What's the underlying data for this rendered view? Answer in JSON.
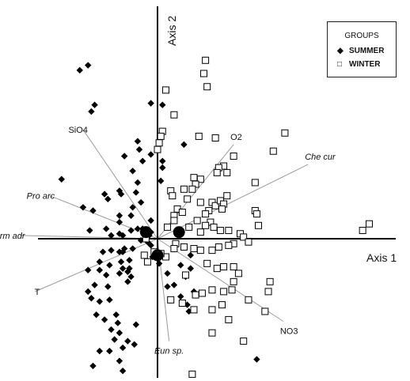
{
  "chart_data": {
    "type": "scatter",
    "title": "",
    "xlabel": "Axis 1",
    "ylabel": "Axis 2",
    "xlim": [
      -1.0,
      1.5
    ],
    "ylim": [
      -1.0,
      1.2
    ],
    "grid": false,
    "legend": {
      "title": "GROUPS",
      "position": "top-right",
      "entries": [
        {
          "name": "SUMMER",
          "marker": "filled-diamond"
        },
        {
          "name": "WINTER",
          "marker": "open-square"
        }
      ]
    },
    "vectors": [
      {
        "label": "SiO4",
        "x": -0.45,
        "y": 0.66,
        "italic": false
      },
      {
        "label": "O2",
        "x": 0.46,
        "y": 0.57,
        "italic": false
      },
      {
        "label": "Che cur",
        "x": 0.91,
        "y": 0.45,
        "italic": true
      },
      {
        "label": "Pro arc",
        "x": -0.65,
        "y": 0.26,
        "italic": true
      },
      {
        "label": "Herm adr",
        "x": -0.83,
        "y": 0.02,
        "italic": true
      },
      {
        "label": "T",
        "x": -0.74,
        "y": -0.32,
        "italic": false
      },
      {
        "label": "NO3",
        "x": 0.76,
        "y": -0.5,
        "italic": false
      },
      {
        "label": "Eun sp.",
        "x": 0.07,
        "y": -0.62,
        "italic": true
      }
    ],
    "centroids": [
      {
        "name": "SUMMER",
        "x": -0.07,
        "y": 0.04
      },
      {
        "name": "WINTER",
        "x": 0.13,
        "y": 0.04
      },
      {
        "name": "",
        "x": 0.0,
        "y": -0.1
      }
    ],
    "series": [
      {
        "name": "SUMMER",
        "points": [
          [
            -0.42,
            1.05
          ],
          [
            -0.47,
            1.02
          ],
          [
            -0.4,
            0.77
          ],
          [
            -0.38,
            0.81
          ],
          [
            -0.04,
            0.82
          ],
          [
            0.03,
            0.81
          ],
          [
            0.16,
            0.57
          ],
          [
            -0.12,
            0.59
          ],
          [
            -0.11,
            0.54
          ],
          [
            -0.09,
            0.47
          ],
          [
            -0.2,
            0.5
          ],
          [
            -0.15,
            0.41
          ],
          [
            -0.04,
            0.51
          ],
          [
            0.03,
            0.47
          ],
          [
            0.03,
            0.43
          ],
          [
            0.02,
            0.35
          ],
          [
            -0.12,
            0.34
          ],
          [
            -0.13,
            0.28
          ],
          [
            -0.23,
            0.29
          ],
          [
            -0.22,
            0.27
          ],
          [
            -0.32,
            0.27
          ],
          [
            -0.3,
            0.24
          ],
          [
            -0.1,
            0.22
          ],
          [
            -0.15,
            0.19
          ],
          [
            -0.16,
            0.14
          ],
          [
            -0.23,
            0.14
          ],
          [
            -0.23,
            0.1
          ],
          [
            -0.39,
            0.17
          ],
          [
            -0.45,
            0.19
          ],
          [
            -0.58,
            0.36
          ],
          [
            -0.41,
            0.05
          ],
          [
            -0.04,
            0.11
          ],
          [
            -0.04,
            0.04
          ],
          [
            -0.09,
            0.06
          ],
          [
            -0.12,
            0.06
          ],
          [
            -0.16,
            0.05
          ],
          [
            -0.21,
            0.02
          ],
          [
            -0.23,
            0.03
          ],
          [
            -0.28,
            0.02
          ],
          [
            -0.31,
            0.06
          ],
          [
            -0.05,
            0.02
          ],
          [
            -0.06,
            -0.02
          ],
          [
            -0.1,
            -0.01
          ],
          [
            -0.15,
            -0.06
          ],
          [
            -0.2,
            -0.06
          ],
          [
            -0.21,
            -0.08
          ],
          [
            -0.23,
            -0.08
          ],
          [
            -0.28,
            -0.07
          ],
          [
            -0.33,
            -0.08
          ],
          [
            -0.35,
            -0.14
          ],
          [
            -0.22,
            -0.14
          ],
          [
            -0.17,
            -0.18
          ],
          [
            -0.18,
            -0.2
          ],
          [
            -0.21,
            -0.18
          ],
          [
            -0.23,
            -0.21
          ],
          [
            -0.16,
            -0.23
          ],
          [
            -0.18,
            -0.26
          ],
          [
            -0.29,
            -0.16
          ],
          [
            -0.31,
            -0.22
          ],
          [
            -0.35,
            -0.19
          ],
          [
            -0.42,
            -0.19
          ],
          [
            -0.38,
            -0.28
          ],
          [
            -0.3,
            -0.29
          ],
          [
            -0.29,
            -0.37
          ],
          [
            -0.35,
            -0.38
          ],
          [
            -0.4,
            -0.36
          ],
          [
            -0.42,
            -0.32
          ],
          [
            -0.37,
            -0.46
          ],
          [
            -0.25,
            -0.46
          ],
          [
            -0.32,
            -0.49
          ],
          [
            -0.24,
            -0.51
          ],
          [
            -0.13,
            -0.52
          ],
          [
            -0.28,
            -0.55
          ],
          [
            -0.23,
            -0.57
          ],
          [
            -0.26,
            -0.61
          ],
          [
            -0.18,
            -0.62
          ],
          [
            -0.14,
            -0.64
          ],
          [
            -0.21,
            -0.66
          ],
          [
            -0.29,
            -0.68
          ],
          [
            -0.35,
            -0.68
          ],
          [
            -0.23,
            -0.74
          ],
          [
            -0.21,
            -0.8
          ],
          [
            -0.39,
            -0.77
          ],
          [
            -0.42,
            -0.92
          ],
          [
            -0.04,
            -0.04
          ],
          [
            -0.03,
            -0.11
          ],
          [
            0.01,
            -0.15
          ],
          [
            0.06,
            -0.21
          ],
          [
            0.06,
            -0.29
          ],
          [
            0.1,
            -0.28
          ],
          [
            0.14,
            -0.35
          ],
          [
            0.18,
            -0.4
          ],
          [
            0.19,
            -0.44
          ],
          [
            0.22,
            -0.32
          ],
          [
            0.2,
            -0.18
          ],
          [
            0.14,
            -0.16
          ],
          [
            0.17,
            -0.23
          ],
          [
            0.2,
            -0.1
          ],
          [
            0.6,
            -0.73
          ],
          [
            -0.17,
            -0.13
          ]
        ]
      },
      {
        "name": "WINTER",
        "points": [
          [
            0.29,
            1.08
          ],
          [
            0.28,
            1.0
          ],
          [
            0.3,
            0.92
          ],
          [
            0.05,
            0.9
          ],
          [
            0.1,
            0.75
          ],
          [
            0.25,
            0.62
          ],
          [
            0.35,
            0.61
          ],
          [
            0.03,
            0.65
          ],
          [
            0.01,
            0.58
          ],
          [
            0.0,
            0.54
          ],
          [
            0.46,
            0.5
          ],
          [
            0.77,
            0.64
          ],
          [
            0.7,
            0.53
          ],
          [
            0.4,
            0.44
          ],
          [
            0.37,
            0.43
          ],
          [
            0.36,
            0.4
          ],
          [
            0.42,
            0.4
          ],
          [
            0.22,
            0.37
          ],
          [
            0.26,
            0.36
          ],
          [
            0.23,
            0.33
          ],
          [
            0.59,
            0.34
          ],
          [
            0.21,
            0.3
          ],
          [
            0.16,
            0.3
          ],
          [
            0.18,
            0.24
          ],
          [
            0.26,
            0.22
          ],
          [
            0.33,
            0.22
          ],
          [
            0.35,
            0.2
          ],
          [
            0.38,
            0.23
          ],
          [
            0.4,
            0.21
          ],
          [
            0.42,
            0.26
          ],
          [
            0.31,
            0.17
          ],
          [
            0.29,
            0.15
          ],
          [
            0.32,
            0.1
          ],
          [
            0.39,
            0.18
          ],
          [
            0.08,
            0.29
          ],
          [
            0.09,
            0.26
          ],
          [
            0.12,
            0.18
          ],
          [
            0.15,
            0.16
          ],
          [
            0.1,
            0.14
          ],
          [
            0.1,
            0.11
          ],
          [
            0.06,
            0.07
          ],
          [
            0.19,
            0.07
          ],
          [
            0.24,
            0.11
          ],
          [
            0.29,
            0.08
          ],
          [
            0.26,
            0.04
          ],
          [
            0.34,
            0.07
          ],
          [
            0.38,
            0.05
          ],
          [
            0.43,
            0.05
          ],
          [
            0.59,
            0.17
          ],
          [
            0.6,
            0.15
          ],
          [
            0.61,
            0.08
          ],
          [
            0.5,
            0.03
          ],
          [
            0.52,
            0.01
          ],
          [
            0.55,
            -0.02
          ],
          [
            0.46,
            -0.03
          ],
          [
            0.43,
            -0.04
          ],
          [
            0.37,
            -0.05
          ],
          [
            0.33,
            -0.07
          ],
          [
            0.26,
            -0.07
          ],
          [
            0.22,
            -0.06
          ],
          [
            0.16,
            -0.05
          ],
          [
            0.11,
            -0.03
          ],
          [
            0.1,
            -0.06
          ],
          [
            0.05,
            -0.11
          ],
          [
            0.02,
            -0.09
          ],
          [
            -0.02,
            -0.08
          ],
          [
            0.3,
            -0.15
          ],
          [
            0.36,
            -0.18
          ],
          [
            0.4,
            -0.17
          ],
          [
            0.46,
            -0.17
          ],
          [
            0.49,
            -0.21
          ],
          [
            0.46,
            -0.26
          ],
          [
            0.45,
            -0.31
          ],
          [
            0.4,
            -0.32
          ],
          [
            0.33,
            -0.31
          ],
          [
            0.27,
            -0.33
          ],
          [
            0.23,
            -0.34
          ],
          [
            0.68,
            -0.26
          ],
          [
            0.67,
            -0.32
          ],
          [
            0.55,
            -0.37
          ],
          [
            0.39,
            -0.4
          ],
          [
            0.33,
            -0.43
          ],
          [
            0.22,
            -0.43
          ],
          [
            0.15,
            -0.39
          ],
          [
            0.08,
            -0.37
          ],
          [
            0.43,
            -0.49
          ],
          [
            0.33,
            -0.57
          ],
          [
            0.52,
            -0.62
          ],
          [
            0.65,
            -0.44
          ],
          [
            0.21,
            -0.82
          ],
          [
            1.24,
            0.05
          ],
          [
            1.28,
            0.09
          ],
          [
            -0.07,
            0.0
          ],
          [
            0.17,
            -0.22
          ],
          [
            -0.08,
            -0.1
          ],
          [
            -0.06,
            -0.14
          ],
          [
            0.02,
            0.62
          ]
        ]
      }
    ]
  }
}
